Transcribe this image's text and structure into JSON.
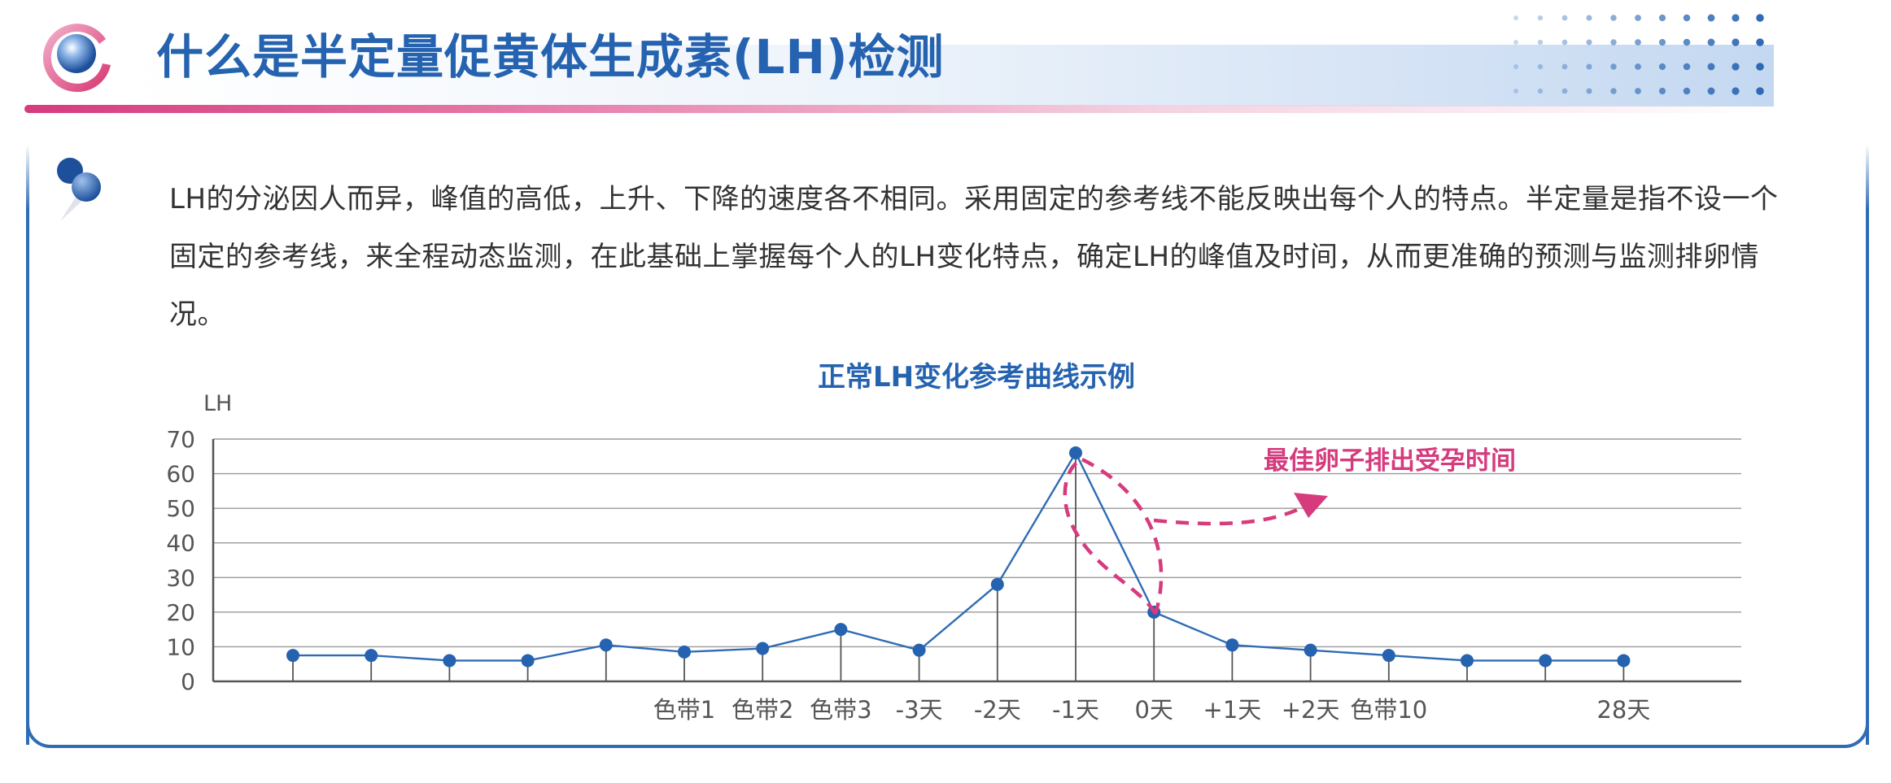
{
  "header": {
    "title": "什么是半定量促黄体生成素(LH)检测"
  },
  "intro_text": "LH的分泌因人而异，峰值的高低，上升、下降的速度各不相同。采用固定的参考线不能反映出每个人的特点。半定量是指不设一个固定的参考线，来全程动态监测，在此基础上掌握每个人的LH变化特点，确定LH的峰值及时间，从而更准确的预测与监测排卵情况。",
  "colors": {
    "primary": "#2563b0",
    "accent": "#d63b7d",
    "line": "#2f6cb5",
    "grid": "#9a9a9a"
  },
  "chart_data": {
    "type": "line",
    "title": "正常LH变化参考曲线示例",
    "ylabel": "LH",
    "xlabel": "",
    "ylim": [
      0,
      70
    ],
    "yticks": [
      0,
      10,
      20,
      30,
      40,
      50,
      60,
      70
    ],
    "grid": true,
    "x_labels": [
      "",
      "",
      "",
      "",
      "",
      "色带1",
      "色带2",
      "色带3",
      "-3天",
      "-2天",
      "-1天",
      "0天",
      "+1天",
      "+2天",
      "色带10",
      "",
      "",
      "28天"
    ],
    "values": [
      7.5,
      7.5,
      6,
      6,
      10.5,
      8.5,
      9.5,
      15,
      9,
      28,
      66,
      20,
      10.5,
      9,
      7.5,
      6,
      6,
      6
    ],
    "annotation": {
      "text": "最佳卵子排出受孕时间",
      "near_index": 10
    }
  }
}
